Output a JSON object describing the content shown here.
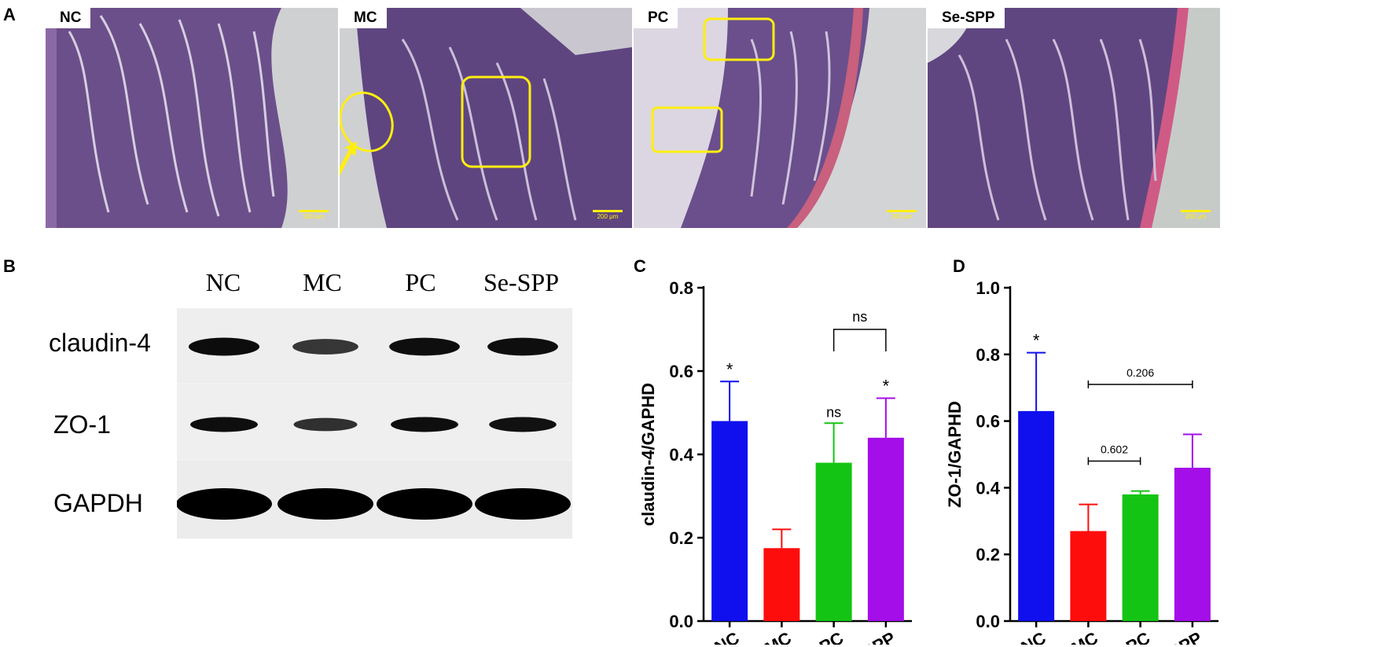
{
  "panels": {
    "a": "A",
    "b": "B",
    "c": "C",
    "d": "D"
  },
  "histology": [
    {
      "label": "NC",
      "scale": "200 μm"
    },
    {
      "label": "MC",
      "scale": "200 μm"
    },
    {
      "label": "PC",
      "scale": "200 μm"
    },
    {
      "label": "Se-SPP",
      "scale": "200 μm"
    }
  ],
  "western_blot": {
    "lanes": [
      "NC",
      "MC",
      "PC",
      "Se-SPP"
    ],
    "rows": [
      {
        "label": "claudin-4",
        "intensity": [
          0.9,
          0.55,
          0.88,
          0.88
        ]
      },
      {
        "label": "ZO-1",
        "intensity": [
          0.88,
          0.6,
          0.88,
          0.86
        ]
      },
      {
        "label": "GAPDH",
        "intensity": [
          1,
          1,
          1,
          1
        ]
      }
    ]
  },
  "colors": {
    "NC": "#1010ee",
    "MC": "#fe0d0d",
    "PC": "#14c414",
    "Se-SPP": "#a40ee8",
    "highlight": "#ffef10"
  },
  "chart_data": [
    {
      "type": "bar",
      "categories": [
        "NC",
        "MC",
        "PC",
        "Se-SPP"
      ],
      "values": [
        0.48,
        0.175,
        0.38,
        0.44
      ],
      "errors": [
        0.095,
        0.045,
        0.095,
        0.095
      ],
      "ylabel": "claudin-4/GAPHD",
      "ylim": [
        0.0,
        0.8
      ],
      "yticks": [
        "0.0",
        "0.2",
        "0.4",
        "0.6",
        "0.8"
      ],
      "annotations": [
        {
          "category": "NC",
          "text": "*"
        },
        {
          "category": "PC",
          "text": "ns"
        },
        {
          "category": "Se-SPP",
          "text": "*"
        }
      ],
      "brackets": [
        {
          "from": "PC",
          "to": "Se-SPP",
          "text": "ns",
          "at": 0.7
        }
      ]
    },
    {
      "type": "bar",
      "categories": [
        "NC",
        "MC",
        "PC",
        "Se-SPP"
      ],
      "values": [
        0.63,
        0.27,
        0.38,
        0.46
      ],
      "errors": [
        0.175,
        0.08,
        0.01,
        0.1
      ],
      "ylabel": "ZO-1/GAPHD",
      "ylim": [
        0.0,
        1.0
      ],
      "yticks": [
        "0.0",
        "0.2",
        "0.4",
        "0.6",
        "0.8",
        "1.0"
      ],
      "annotations": [
        {
          "category": "NC",
          "text": "*"
        }
      ],
      "brackets": [
        {
          "from": "MC",
          "to": "PC",
          "text": "0.602",
          "at": 0.48
        },
        {
          "from": "MC",
          "to": "Se-SPP",
          "text": "0.206",
          "at": 0.71
        }
      ]
    }
  ]
}
